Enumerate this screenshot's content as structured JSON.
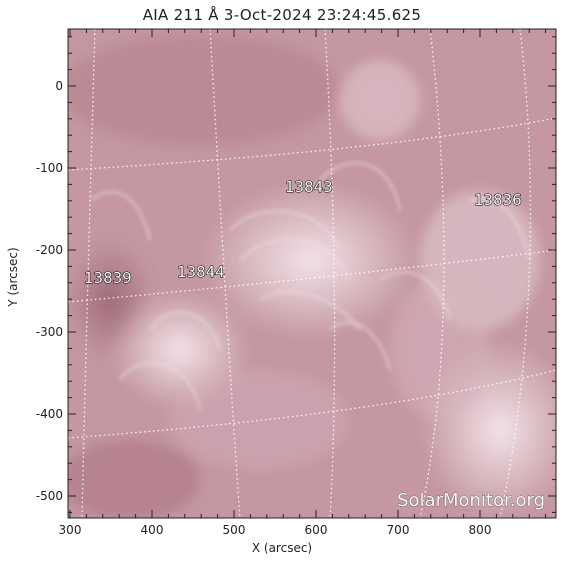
{
  "title": "AIA 211 Å  3-Oct-2024 23:24:45.625",
  "axes": {
    "xlabel": "X (arcsec)",
    "ylabel": "Y (arcsec)",
    "x_ticks": [
      "300",
      "400",
      "500",
      "600",
      "700",
      "800"
    ],
    "y_ticks": [
      "0",
      "-100",
      "-200",
      "-300",
      "-400",
      "-500"
    ]
  },
  "active_regions": [
    {
      "id": "13843"
    },
    {
      "id": "13836"
    },
    {
      "id": "13839"
    },
    {
      "id": "13844"
    }
  ],
  "watermark": "SolarMonitor.org",
  "colors": {
    "image_base": "#c497a2",
    "image_bright": "#f3e4e8",
    "image_dark": "#9a6372",
    "grid": "#ffffff"
  }
}
